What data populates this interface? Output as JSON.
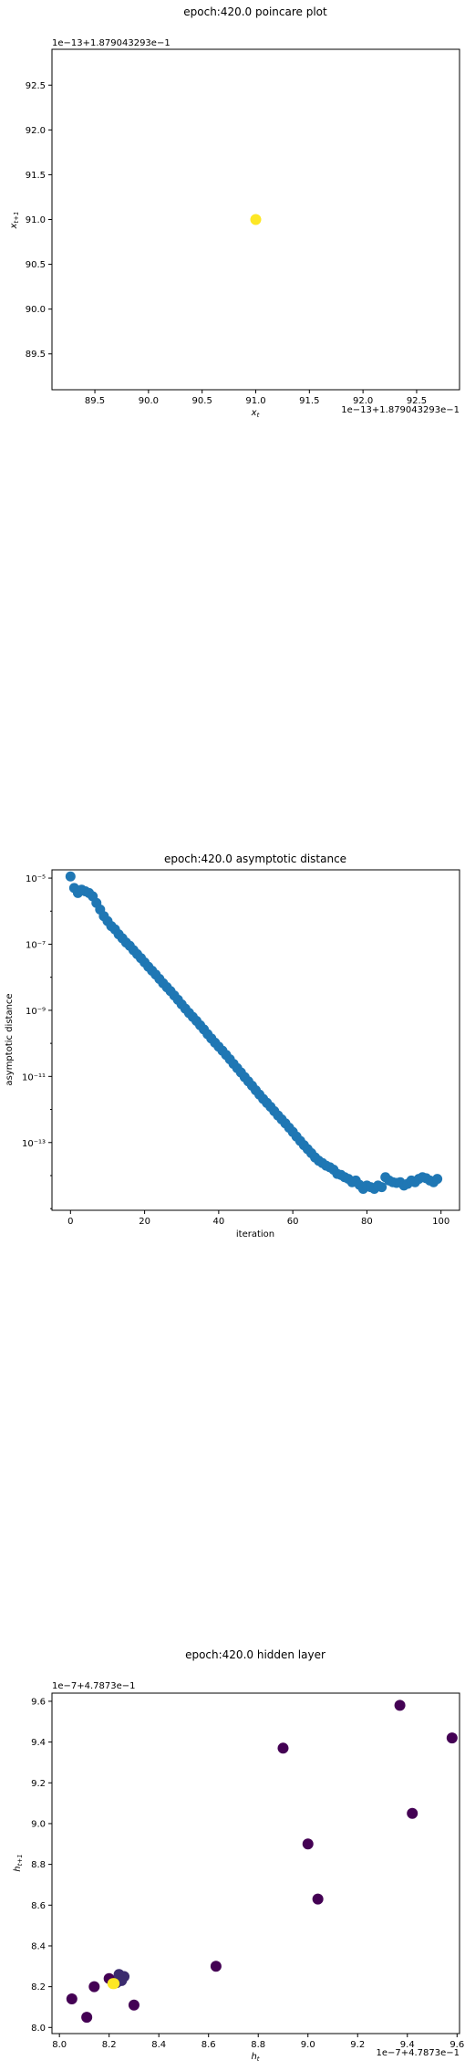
{
  "colors": {
    "poincare_point": "#fde725",
    "asymptotic_point": "#1f77b4",
    "hidden_dark": "#440154",
    "hidden_mid": "#3b2b6e",
    "hidden_yellow": "#fde725"
  },
  "chart_data": [
    {
      "type": "scatter",
      "title": "epoch:420.0 poincare plot",
      "xlabel": "x_t",
      "ylabel": "x_{t+1}",
      "x_offset_label": "1e−13+1.879043293e−1",
      "y_offset_label": "1e−13+1.879043293e−1",
      "xlim": [
        89.1,
        92.9
      ],
      "ylim": [
        89.1,
        92.9
      ],
      "xticks": [
        "89.5",
        "90.0",
        "90.5",
        "91.0",
        "91.5",
        "92.0",
        "92.5"
      ],
      "yticks": [
        "89.5",
        "90.0",
        "90.5",
        "91.0",
        "91.5",
        "92.0",
        "92.5"
      ],
      "points": [
        {
          "x": 91.0,
          "y": 91.0
        }
      ]
    },
    {
      "type": "scatter",
      "title": "epoch:420.0 asymptotic distance",
      "xlabel": "iteration",
      "ylabel": "asymptotic distance",
      "yscale": "log",
      "xlim": [
        -5,
        105
      ],
      "ylim_log10": [
        -15.05,
        -4.75
      ],
      "xticks": [
        "0",
        "20",
        "40",
        "60",
        "80",
        "100"
      ],
      "yticks": [
        "10⁻⁵",
        "10⁻⁷",
        "10⁻⁹",
        "10⁻¹¹",
        "10⁻¹³"
      ],
      "x": [
        0,
        1,
        2,
        3,
        4,
        5,
        6,
        7,
        8,
        9,
        10,
        11,
        12,
        13,
        14,
        15,
        16,
        17,
        18,
        19,
        20,
        21,
        22,
        23,
        24,
        25,
        26,
        27,
        28,
        29,
        30,
        31,
        32,
        33,
        34,
        35,
        36,
        37,
        38,
        39,
        40,
        41,
        42,
        43,
        44,
        45,
        46,
        47,
        48,
        49,
        50,
        51,
        52,
        53,
        54,
        55,
        56,
        57,
        58,
        59,
        60,
        61,
        62,
        63,
        64,
        65,
        66,
        67,
        68,
        69,
        70,
        71,
        72,
        73,
        74,
        75,
        76,
        77,
        78,
        79,
        80,
        81,
        82,
        83,
        84,
        85,
        86,
        87,
        88,
        89,
        90,
        91,
        92,
        93,
        94,
        95,
        96,
        97,
        98,
        99
      ],
      "log10_y": [
        -4.95,
        -5.3,
        -5.45,
        -5.35,
        -5.4,
        -5.45,
        -5.55,
        -5.75,
        -5.95,
        -6.15,
        -6.3,
        -6.45,
        -6.55,
        -6.7,
        -6.82,
        -6.95,
        -7.05,
        -7.18,
        -7.3,
        -7.42,
        -7.55,
        -7.68,
        -7.8,
        -7.92,
        -8.05,
        -8.18,
        -8.3,
        -8.42,
        -8.55,
        -8.68,
        -8.82,
        -8.95,
        -9.08,
        -9.2,
        -9.32,
        -9.45,
        -9.58,
        -9.72,
        -9.85,
        -9.98,
        -10.1,
        -10.22,
        -10.35,
        -10.48,
        -10.62,
        -10.75,
        -10.88,
        -11.02,
        -11.15,
        -11.28,
        -11.42,
        -11.55,
        -11.68,
        -11.8,
        -11.92,
        -12.05,
        -12.18,
        -12.3,
        -12.42,
        -12.55,
        -12.68,
        -12.82,
        -12.95,
        -13.08,
        -13.2,
        -13.32,
        -13.45,
        -13.55,
        -13.62,
        -13.7,
        -13.75,
        -13.82,
        -13.95,
        -13.98,
        -14.05,
        -14.1,
        -14.2,
        -14.15,
        -14.28,
        -14.4,
        -14.3,
        -14.35,
        -14.4,
        -14.3,
        -14.35,
        -14.05,
        -14.15,
        -14.2,
        -14.22,
        -14.2,
        -14.3,
        -14.25,
        -14.15,
        -14.2,
        -14.1,
        -14.05,
        -14.08,
        -14.15,
        -14.2,
        -14.1
      ]
    },
    {
      "type": "scatter",
      "title": "epoch:420.0 hidden layer",
      "xlabel": "h_t",
      "ylabel": "h_{t+1}",
      "x_offset_label": "1e−7+4.7873e−1",
      "y_offset_label": "1e−7+4.7873e−1",
      "xlim": [
        7.97,
        9.61
      ],
      "ylim": [
        7.97,
        9.64
      ],
      "xticks": [
        "8.0",
        "8.2",
        "8.4",
        "8.6",
        "8.8",
        "9.0",
        "9.2",
        "9.4",
        "9.6"
      ],
      "yticks": [
        "8.0",
        "8.2",
        "8.4",
        "8.6",
        "8.8",
        "9.0",
        "9.2",
        "9.4",
        "9.6"
      ],
      "points": [
        {
          "x": 9.37,
          "y": 9.58,
          "c": "dark"
        },
        {
          "x": 9.58,
          "y": 9.42,
          "c": "dark"
        },
        {
          "x": 8.9,
          "y": 9.37,
          "c": "dark"
        },
        {
          "x": 9.42,
          "y": 9.05,
          "c": "dark"
        },
        {
          "x": 9.0,
          "y": 8.9,
          "c": "dark"
        },
        {
          "x": 9.04,
          "y": 8.63,
          "c": "dark"
        },
        {
          "x": 8.63,
          "y": 8.3,
          "c": "dark"
        },
        {
          "x": 8.3,
          "y": 8.11,
          "c": "dark"
        },
        {
          "x": 8.11,
          "y": 8.05,
          "c": "dark"
        },
        {
          "x": 8.05,
          "y": 8.14,
          "c": "dark"
        },
        {
          "x": 8.14,
          "y": 8.2,
          "c": "dark"
        },
        {
          "x": 8.2,
          "y": 8.24,
          "c": "dark"
        },
        {
          "x": 8.24,
          "y": 8.26,
          "c": "mid"
        },
        {
          "x": 8.26,
          "y": 8.25,
          "c": "mid"
        },
        {
          "x": 8.25,
          "y": 8.23,
          "c": "mid"
        },
        {
          "x": 8.23,
          "y": 8.22,
          "c": "mid"
        },
        {
          "x": 8.22,
          "y": 8.215,
          "c": "yellow"
        },
        {
          "x": 8.215,
          "y": 8.215,
          "c": "yellow"
        }
      ]
    }
  ]
}
